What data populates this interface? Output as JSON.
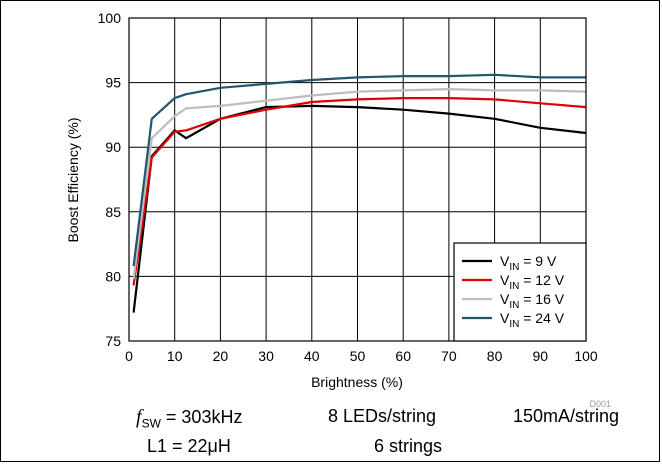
{
  "chart_data": {
    "type": "line",
    "xlabel": "Brightness (%)",
    "ylabel": "Boost Efficiency (%)",
    "xlim": [
      0,
      100
    ],
    "ylim": [
      75,
      100
    ],
    "xticks": [
      0,
      10,
      20,
      30,
      40,
      50,
      60,
      70,
      80,
      90,
      100
    ],
    "yticks": [
      75,
      80,
      85,
      90,
      95,
      100
    ],
    "grid": true,
    "legend_position": "bottom-right",
    "figure_id": "D001",
    "series": [
      {
        "name": "V_IN = 9 V",
        "color": "#000000",
        "x": [
          1,
          5,
          10,
          12.5,
          20,
          30,
          40,
          50,
          60,
          70,
          80,
          90,
          100
        ],
        "y": [
          77.2,
          89.3,
          91.3,
          90.7,
          92.2,
          93.1,
          93.2,
          93.1,
          92.9,
          92.6,
          92.2,
          91.5,
          91.1
        ]
      },
      {
        "name": "V_IN = 12 V",
        "color": "#e00000",
        "x": [
          1,
          5,
          10,
          12.5,
          20,
          30,
          40,
          50,
          60,
          70,
          80,
          90,
          100
        ],
        "y": [
          79.3,
          89.2,
          91.2,
          91.3,
          92.2,
          92.9,
          93.5,
          93.7,
          93.8,
          93.8,
          93.7,
          93.4,
          93.1
        ]
      },
      {
        "name": "V_IN = 16 V",
        "color": "#bdbdbd",
        "x": [
          1,
          5,
          10,
          12.5,
          20,
          30,
          40,
          50,
          60,
          70,
          80,
          90,
          100
        ],
        "y": [
          79.8,
          90.7,
          92.4,
          93.0,
          93.2,
          93.6,
          94.0,
          94.3,
          94.4,
          94.5,
          94.4,
          94.4,
          94.3
        ]
      },
      {
        "name": "V_IN = 24 V",
        "color": "#23566e",
        "x": [
          1,
          5,
          10,
          12.5,
          20,
          30,
          40,
          50,
          60,
          70,
          80,
          90,
          100
        ],
        "y": [
          80.8,
          92.2,
          93.8,
          94.1,
          94.6,
          94.9,
          95.2,
          95.4,
          95.5,
          95.5,
          95.6,
          95.4,
          95.4
        ]
      }
    ]
  },
  "conditions": {
    "fsw_symbol": "f",
    "fsw_sub": "SW",
    "fsw_value": " = 303kHz",
    "leds": "8 LEDs/string",
    "current": "150mA/string",
    "inductor": "L1 = 22μH",
    "strings": "6 strings"
  }
}
